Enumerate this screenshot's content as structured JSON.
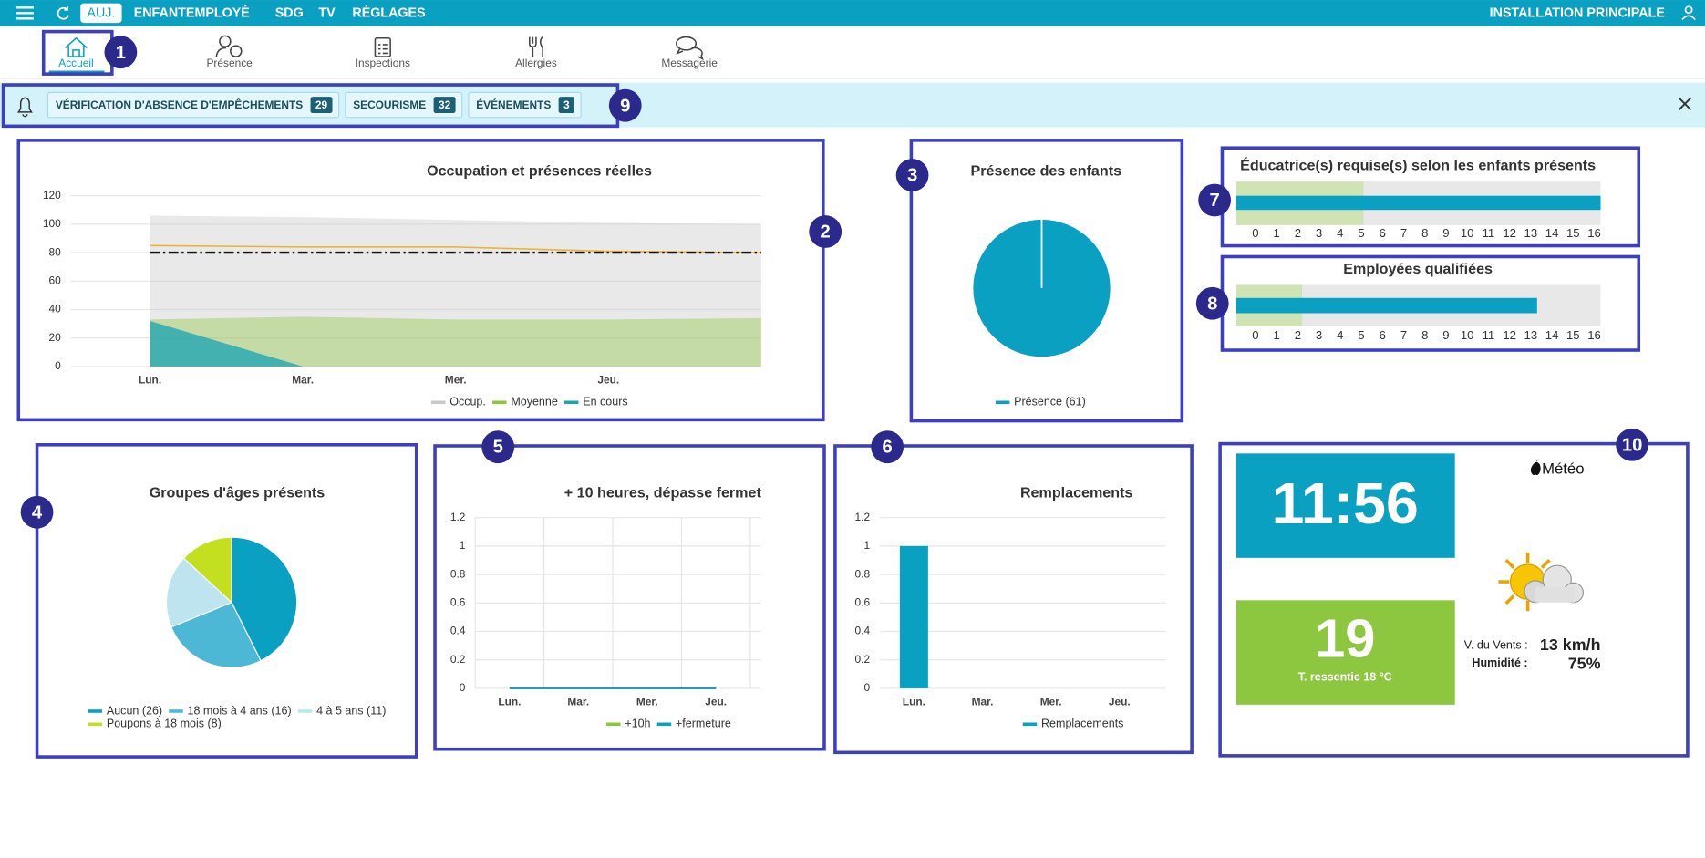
{
  "nav": {
    "items": [
      "AUJ.",
      "ENFANT",
      "EMPLOYÉ",
      "SDG",
      "TV",
      "RÉGLAGES"
    ],
    "site": "INSTALLATION PRINCIPALE"
  },
  "tabs": [
    "Accueil",
    "Présence",
    "Inspections",
    "Allergies",
    "Messagerie"
  ],
  "alerts": [
    {
      "label": "VÉRIFICATION D'ABSENCE D'EMPÊCHEMENTS",
      "count": 29
    },
    {
      "label": "SECOURISME",
      "count": 32
    },
    {
      "label": "ÉVÉNEMENTS",
      "count": 3
    }
  ],
  "markers": [
    1,
    2,
    3,
    4,
    5,
    6,
    7,
    8,
    9,
    10
  ],
  "chart_data": [
    {
      "type": "area",
      "title": "Occupation et présences réelles",
      "categories": [
        "Lun.",
        "Mar.",
        "Mer.",
        "Jeu.",
        null
      ],
      "series": [
        {
          "name": "Occup.",
          "color": "#c8c8c8",
          "style": "area",
          "values": [
            106,
            105,
            103,
            101,
            100
          ]
        },
        {
          "name": "Moyenne",
          "color": "#8dc63f",
          "style": "area",
          "values": [
            33,
            35,
            33,
            33,
            34
          ]
        },
        {
          "name": "En cours",
          "color": "#1aa3b5",
          "style": "area",
          "values": [
            32,
            0,
            0,
            0,
            0
          ]
        },
        {
          "color": "#f0b030",
          "style": "line",
          "values": [
            85,
            84,
            84,
            81,
            80
          ]
        },
        {
          "color": "#111111",
          "style": "dash",
          "values": [
            80,
            80,
            80,
            80,
            80
          ]
        }
      ],
      "ylim": [
        0,
        120
      ],
      "yticks": [
        0,
        20,
        40,
        60,
        80,
        100,
        120
      ],
      "grid": true
    },
    {
      "type": "pie",
      "title": "Présence des enfants",
      "categories": [
        "Présence (61)"
      ],
      "values": [
        61
      ],
      "colors": [
        "#0aa0c2"
      ]
    },
    {
      "type": "hbar",
      "title": "Éducatrice(s) requise(s) selon les enfants présents",
      "value": 16.3,
      "color": "#0aa0c2",
      "band": 5.1,
      "band_color": "#cfe3b5",
      "xlim": [
        -0.9,
        16.3
      ],
      "xticks": [
        0,
        1,
        2,
        3,
        4,
        5,
        6,
        7,
        8,
        9,
        10,
        11,
        12,
        13,
        14,
        15,
        16
      ]
    },
    {
      "type": "hbar",
      "title": "Employées qualifiées",
      "value": 13.3,
      "color": "#0aa0c2",
      "band": 2.2,
      "band_color": "#cfe3b5",
      "xlim": [
        -0.9,
        16.3
      ],
      "xticks": [
        0,
        1,
        2,
        3,
        4,
        5,
        6,
        7,
        8,
        9,
        10,
        11,
        12,
        13,
        14,
        15,
        16
      ]
    },
    {
      "type": "pie",
      "title": "Groupes d'âges présents",
      "categories": [
        "Aucun (26)",
        "18 mois à 4 ans (16)",
        "4 à 5 ans (11)",
        "Poupons à 18 mois (8)"
      ],
      "values": [
        26,
        16,
        11,
        8
      ],
      "colors": [
        "#0aa0c2",
        "#4db8d6",
        "#bde4ef",
        "#c3df1e"
      ]
    },
    {
      "type": "line",
      "title": "+ 10 heures, dépasse fermet",
      "categories": [
        "Lun.",
        "Mar.",
        "Mer.",
        "Jeu."
      ],
      "series": [
        {
          "name": "+10h",
          "color": "#8dc63f",
          "values": [
            0,
            0,
            0,
            0
          ]
        },
        {
          "name": "+fermeture",
          "color": "#0aa0c2",
          "values": [
            0,
            0,
            0,
            0
          ]
        }
      ],
      "ylim": [
        0,
        1.2
      ],
      "yticks": [
        0,
        0.2,
        0.4,
        0.6,
        0.8,
        1,
        1.2
      ],
      "grid": true,
      "vgrid": true
    },
    {
      "type": "bar",
      "title": "Remplacements",
      "categories": [
        "Lun.",
        "Mar.",
        "Mer.",
        "Jeu."
      ],
      "series": [
        {
          "name": "Remplacements",
          "color": "#0aa0c2",
          "values": [
            1,
            0,
            0,
            0
          ]
        }
      ],
      "ylim": [
        0,
        1.2
      ],
      "yticks": [
        0,
        0.2,
        0.4,
        0.6,
        0.8,
        1,
        1.2
      ],
      "grid": true
    }
  ],
  "widget": {
    "time": "11:56",
    "brand": "Météo",
    "temperature": 19,
    "feels_like": "T. ressentie 18 °C",
    "wind_label": "V. du Vents :",
    "wind": "13 km/h",
    "humidity_label": "Humidité :",
    "humidity": "75%"
  }
}
